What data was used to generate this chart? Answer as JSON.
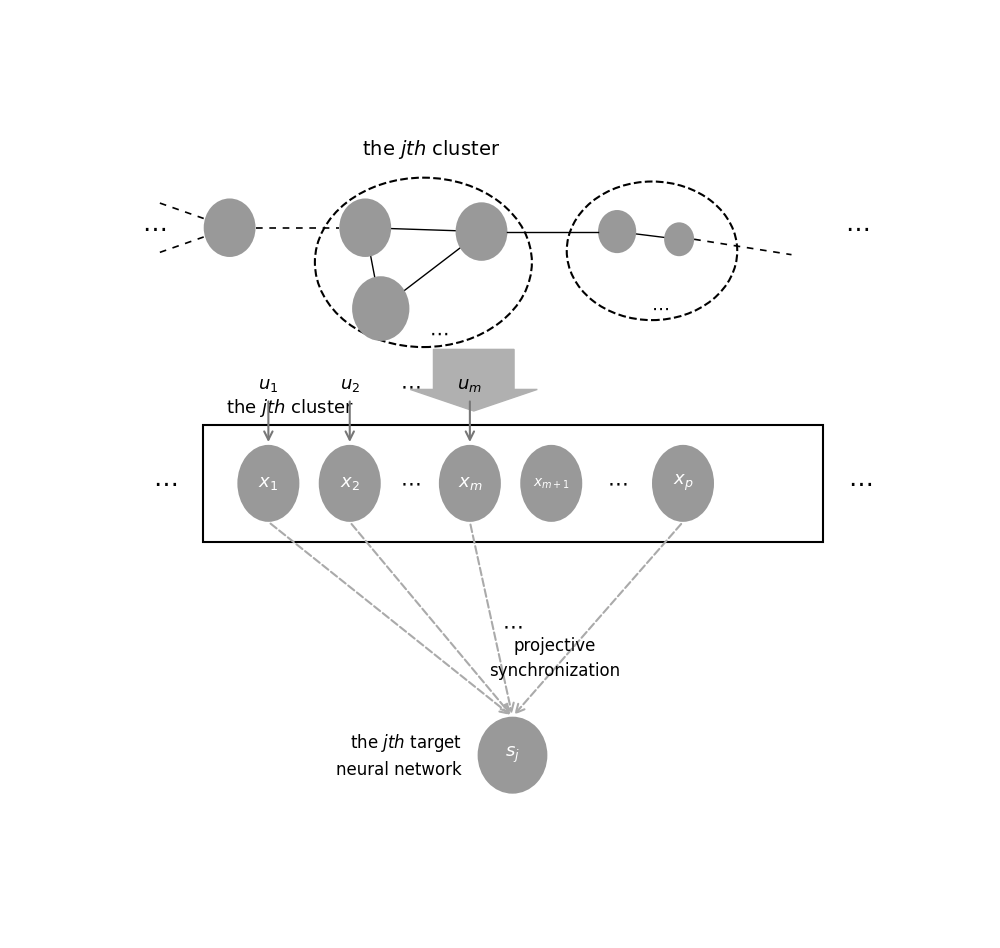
{
  "bg_color": "#ffffff",
  "node_color": "#999999",
  "title_top": "the $jth$ cluster",
  "label_jth_cluster": "the $jth$ cluster",
  "label_proj_sync": "projective\nsynchronization",
  "label_target": "the $jth$ target\nneural network",
  "label_sj": "$s_j$",
  "node_labels_x": [
    "$x_1$",
    "$x_2$",
    "$x_m$",
    "$x_{m+1}$",
    "$x_p$"
  ],
  "node_labels_u": [
    "$u_1$",
    "$u_2$",
    "$u_m$"
  ],
  "dots_color": "#333333",
  "arrow_color": "#aaaaaa",
  "arrow_gray": "#888888"
}
